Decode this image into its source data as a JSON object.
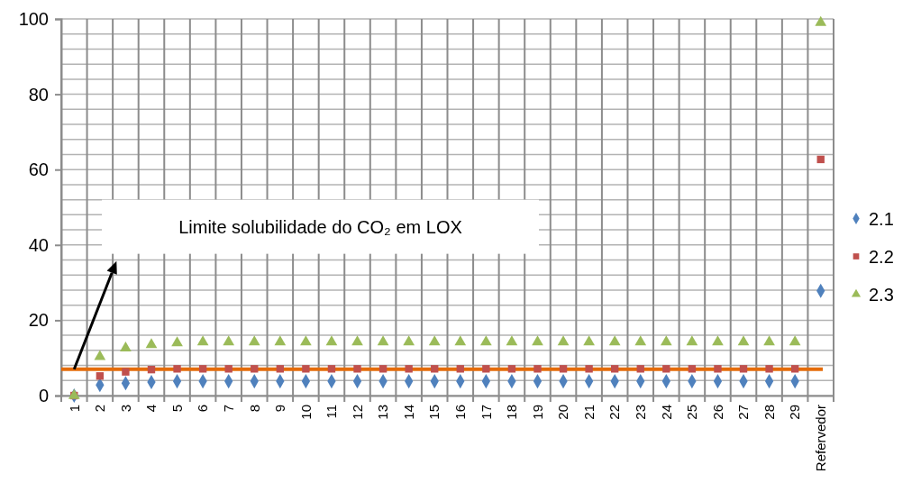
{
  "chart_data": {
    "type": "scatter",
    "categories": [
      "1",
      "2",
      "3",
      "4",
      "5",
      "6",
      "7",
      "8",
      "9",
      "10",
      "11",
      "12",
      "13",
      "14",
      "15",
      "16",
      "17",
      "18",
      "19",
      "20",
      "21",
      "22",
      "23",
      "24",
      "25",
      "26",
      "27",
      "28",
      "29",
      "Refervedor"
    ],
    "series": [
      {
        "name": "2.1",
        "color": "#4f81bd",
        "marker": "diamond",
        "values": [
          0,
          2.8,
          3.3,
          3.6,
          3.8,
          3.8,
          3.8,
          3.8,
          3.8,
          3.8,
          3.8,
          3.8,
          3.8,
          3.8,
          3.8,
          3.8,
          3.8,
          3.8,
          3.8,
          3.8,
          3.8,
          3.8,
          3.8,
          3.8,
          3.8,
          3.8,
          3.8,
          3.8,
          3.8,
          27.8
        ]
      },
      {
        "name": "2.2",
        "color": "#c0504d",
        "marker": "square",
        "values": [
          0,
          5.2,
          6.3,
          6.9,
          7.1,
          7.1,
          7.1,
          7.1,
          7.1,
          7.1,
          7.1,
          7.1,
          7.1,
          7.1,
          7.1,
          7.1,
          7.1,
          7.1,
          7.1,
          7.1,
          7.1,
          7.1,
          7.1,
          7.1,
          7.1,
          7.1,
          7.1,
          7.1,
          7.1,
          62.7
        ]
      },
      {
        "name": "2.3",
        "color": "#9bbb59",
        "marker": "triangle",
        "values": [
          0,
          10.3,
          12.6,
          13.5,
          14.0,
          14.2,
          14.2,
          14.2,
          14.2,
          14.2,
          14.2,
          14.2,
          14.2,
          14.2,
          14.2,
          14.2,
          14.2,
          14.2,
          14.2,
          14.2,
          14.2,
          14.2,
          14.2,
          14.2,
          14.2,
          14.2,
          14.2,
          14.2,
          14.2,
          99
        ]
      }
    ],
    "ylim": [
      0,
      100
    ],
    "yticks": [
      0,
      20,
      40,
      60,
      80,
      100
    ],
    "grid": true,
    "legend": "right",
    "ref_lines": [
      {
        "axis": "y",
        "value": 7,
        "color": "#e46c0a"
      }
    ],
    "annotations": [
      "Limite solubilidade do CO₂ em LOX"
    ]
  }
}
